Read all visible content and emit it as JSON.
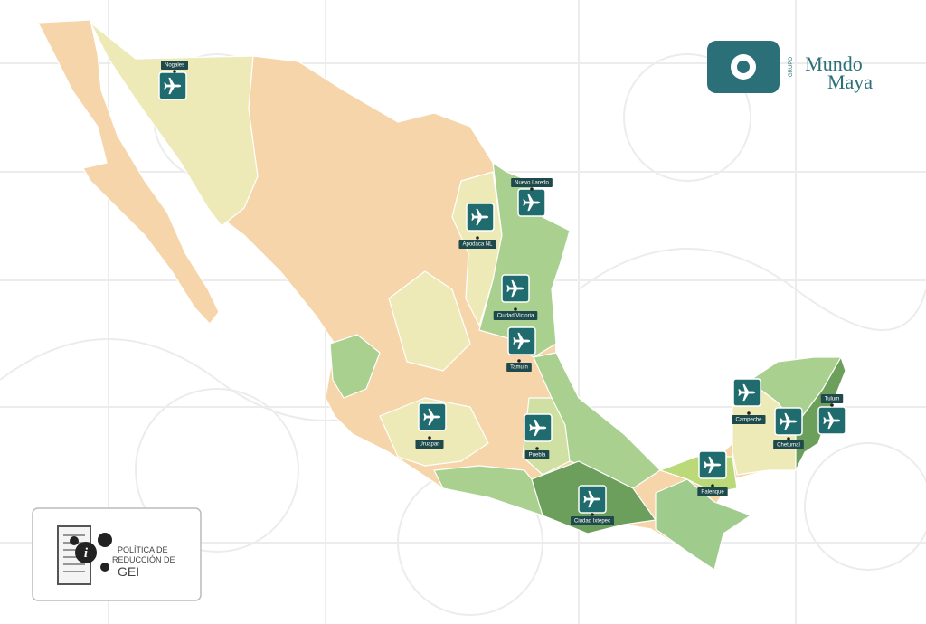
{
  "logo": {
    "group": "GRUPO",
    "brand_top": "Mundo",
    "brand_bottom": "Maya"
  },
  "airports": [
    {
      "label": "Nogales"
    },
    {
      "label": "Nuevo Laredo"
    },
    {
      "label": "Apodaca NL"
    },
    {
      "label": "Ciudad Victoria"
    },
    {
      "label": "Tamuín"
    },
    {
      "label": "Uruapan"
    },
    {
      "label": "Puebla"
    },
    {
      "label": "Ciudad Ixtepec"
    },
    {
      "label": "Palenque"
    },
    {
      "label": "Campeche"
    },
    {
      "label": "Chetumal"
    },
    {
      "label": "Tulum"
    }
  ],
  "info_box": {
    "line1": "POLÍTICA DE",
    "line2": "REDUCCIÓN DE",
    "line3": "GEI"
  }
}
